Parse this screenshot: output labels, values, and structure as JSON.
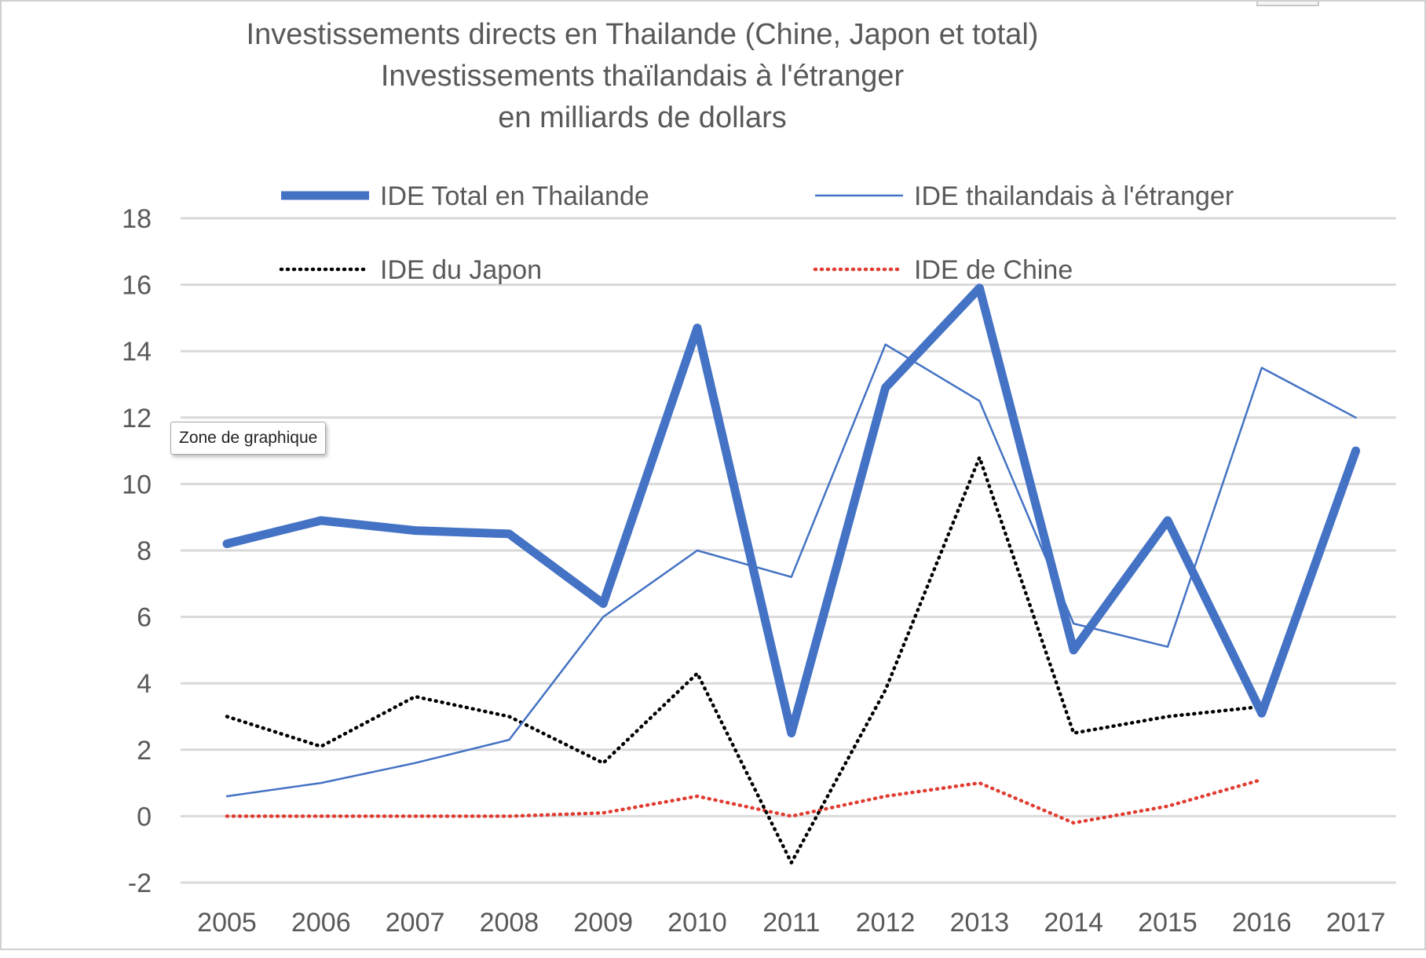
{
  "chart_area_tooltip": "Zone de graphique",
  "chart_data": {
    "type": "line",
    "title_lines": [
      "Investissements directs en Thailande (Chine, Japon et total)",
      "Investissements thaïlandais à l'étranger",
      "en milliards de dollars"
    ],
    "xlabel": "",
    "ylabel": "",
    "categories": [
      "2005",
      "2006",
      "2007",
      "2008",
      "2009",
      "2010",
      "2011",
      "2012",
      "2013",
      "2014",
      "2015",
      "2016",
      "2017"
    ],
    "ylim": [
      -2,
      18
    ],
    "yticks": [
      -2,
      0,
      2,
      4,
      6,
      8,
      10,
      12,
      14,
      16,
      18
    ],
    "grid": true,
    "legend_position": "top",
    "series": [
      {
        "name": "IDE Total en Thailande",
        "color": "#4472C4",
        "style": "thick-solid",
        "values": [
          8.2,
          8.9,
          8.6,
          8.5,
          6.4,
          14.7,
          2.5,
          12.9,
          15.9,
          5.0,
          8.9,
          3.1,
          11.0
        ]
      },
      {
        "name": "IDE thailandais à l'étranger",
        "color": "#4472C4",
        "style": "thin-solid",
        "values": [
          0.6,
          1.0,
          1.6,
          2.3,
          6.0,
          8.0,
          7.2,
          14.2,
          12.5,
          5.8,
          5.1,
          13.5,
          12.0
        ]
      },
      {
        "name": "IDE du Japon",
        "color": "#000000",
        "style": "dotted",
        "values": [
          3.0,
          2.1,
          3.6,
          3.0,
          1.6,
          4.3,
          -1.4,
          3.8,
          10.8,
          2.5,
          3.0,
          3.3,
          null
        ]
      },
      {
        "name": "IDE de Chine",
        "color": "#E03C31",
        "style": "dotted",
        "values": [
          0.0,
          0.0,
          0.0,
          0.0,
          0.1,
          0.6,
          0.0,
          0.6,
          1.0,
          -0.2,
          0.3,
          1.1,
          null
        ]
      }
    ]
  }
}
